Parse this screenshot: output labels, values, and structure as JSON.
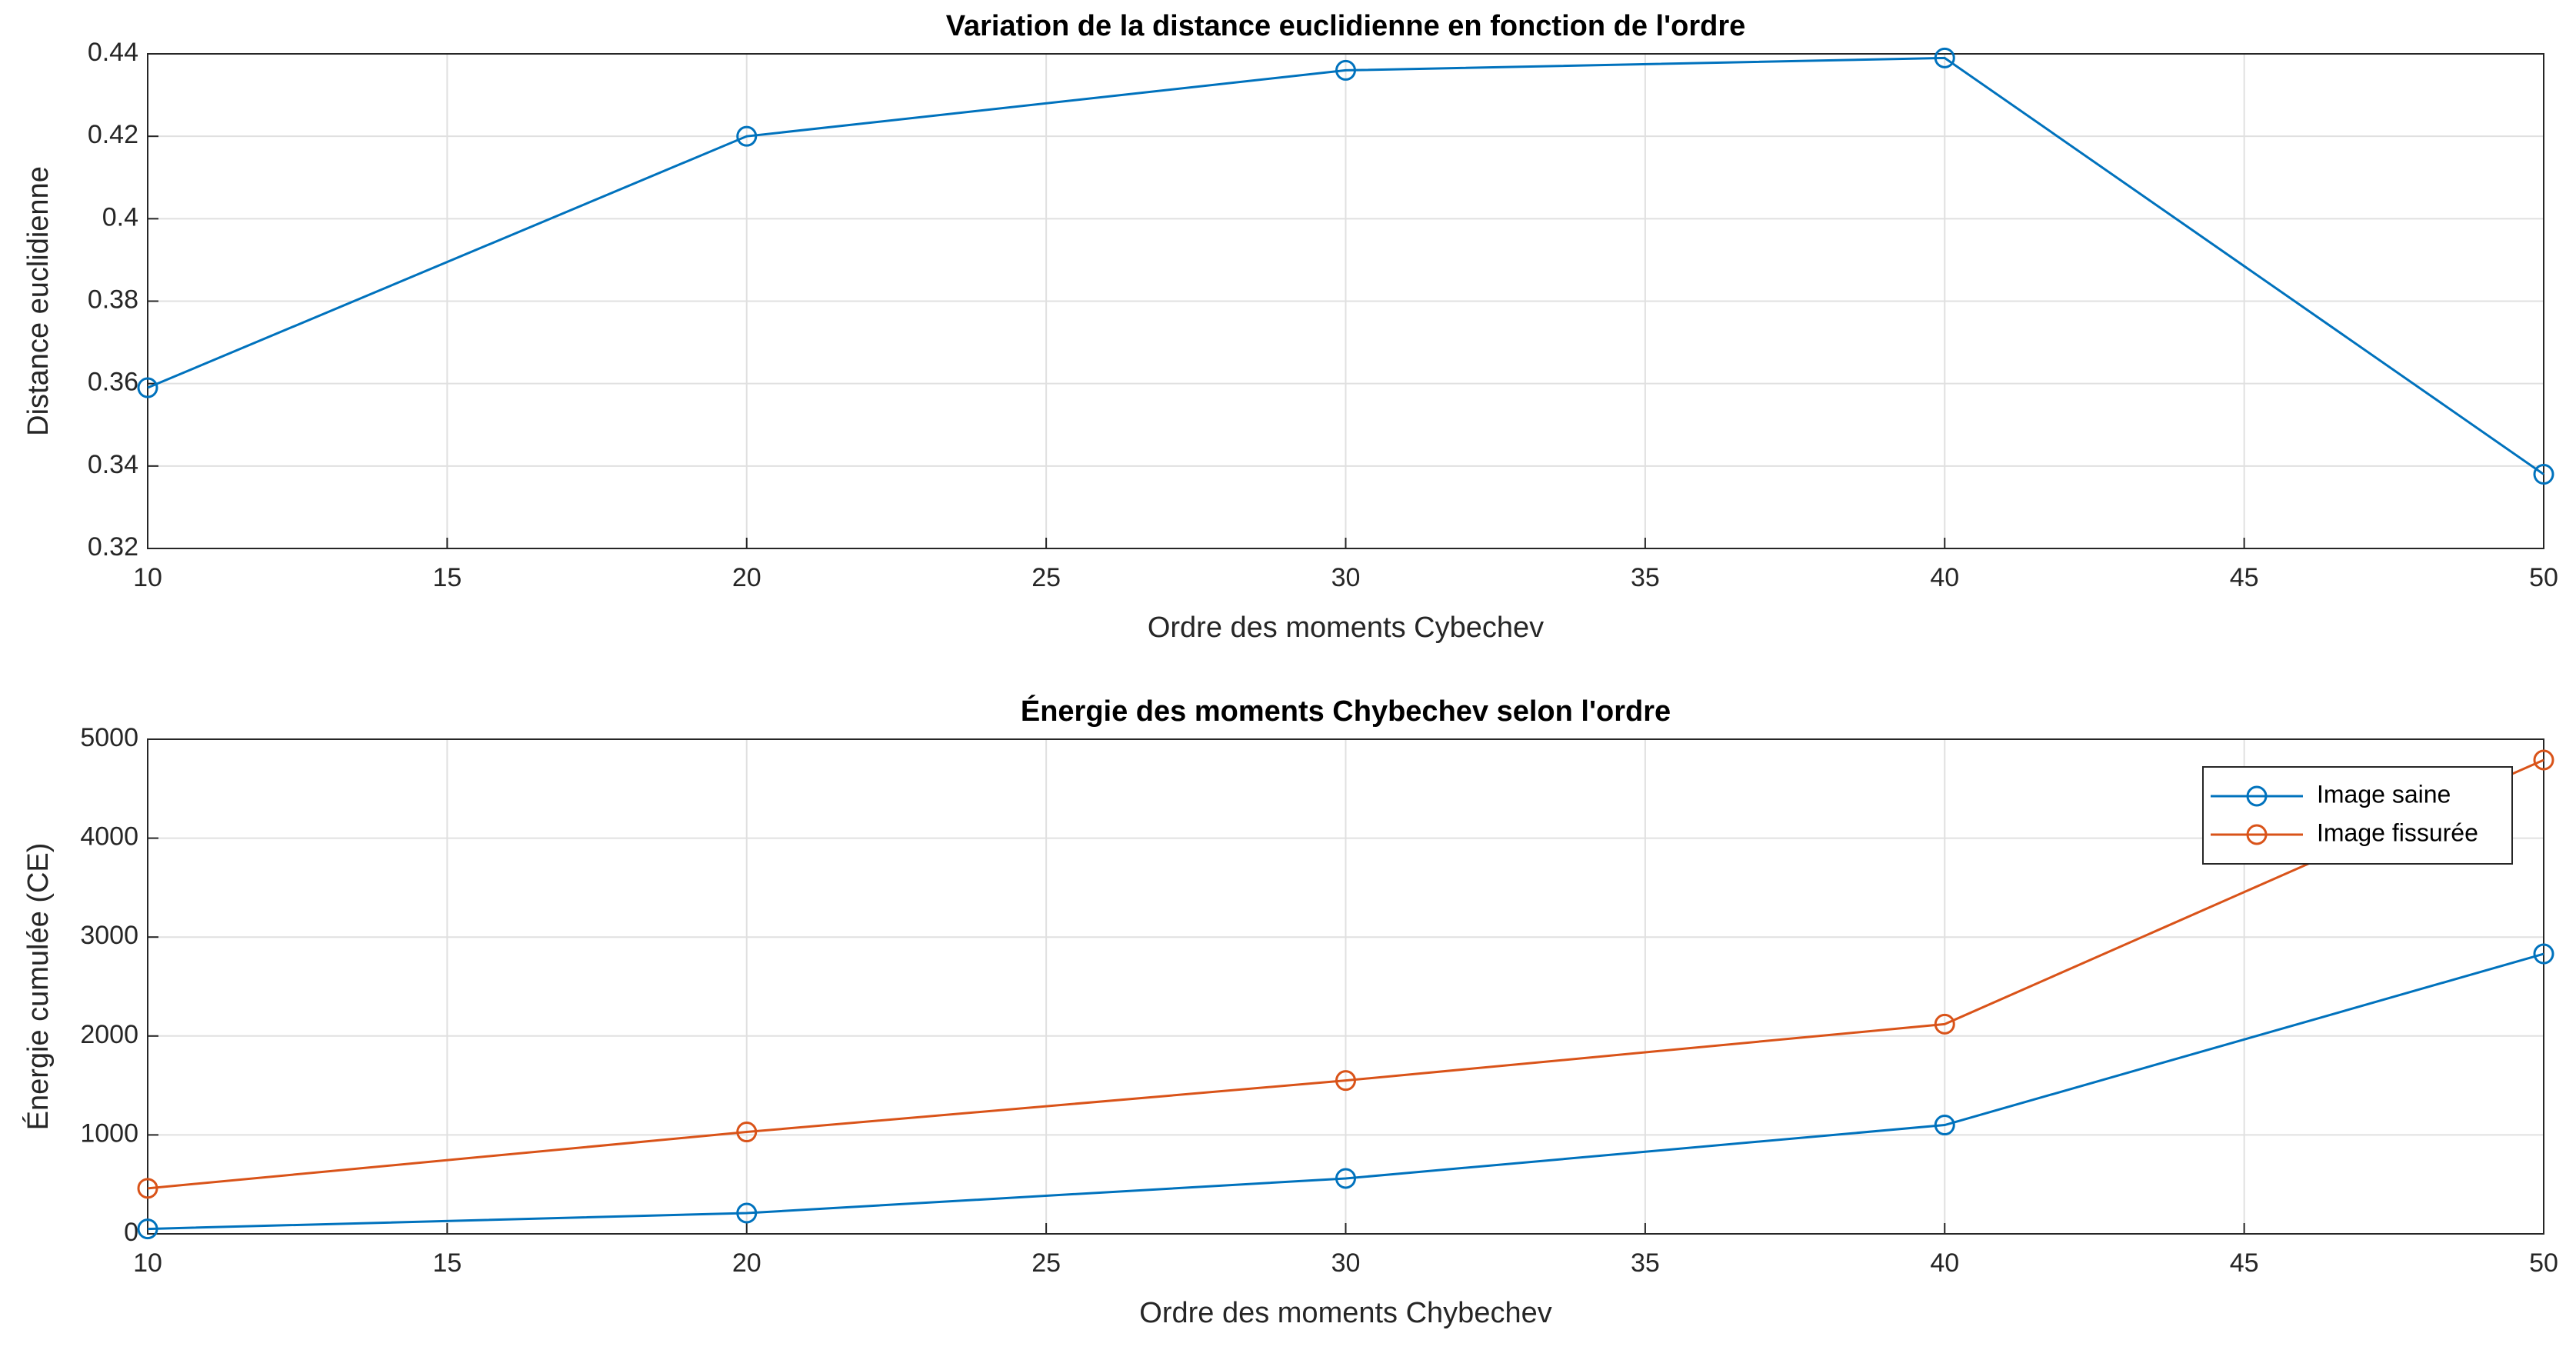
{
  "chart_data": [
    {
      "type": "line",
      "title": "Variation de la distance euclidienne en fonction de l'ordre",
      "x_label": "Ordre des moments Cybechev",
      "y_label": "Distance euclidienne",
      "x": [
        10,
        20,
        30,
        40,
        50
      ],
      "values": [
        0.359,
        0.42,
        0.436,
        0.439,
        0.338
      ],
      "color": "#0072bd",
      "xlim": [
        10,
        50
      ],
      "xticks": [
        10,
        15,
        20,
        25,
        30,
        35,
        40,
        45,
        50
      ],
      "ylim": [
        0.32,
        0.44
      ],
      "yticks": [
        0.32,
        0.34,
        0.36,
        0.38,
        0.4,
        0.42,
        0.44
      ],
      "grid": true
    },
    {
      "type": "line",
      "title": "Énergie des moments Chybechev selon l'ordre",
      "x_label": "Ordre des moments Chybechev",
      "y_label": "Énergie cumulée (CE)",
      "x": [
        10,
        20,
        30,
        40,
        50
      ],
      "series": [
        {
          "name": "Image saine",
          "color": "#0072bd",
          "values": [
            50,
            210,
            560,
            1100,
            2830
          ]
        },
        {
          "name": "Image fissurée",
          "color": "#d95319",
          "values": [
            460,
            1030,
            1550,
            2120,
            4790
          ]
        }
      ],
      "xlim": [
        10,
        50
      ],
      "xticks": [
        10,
        15,
        20,
        25,
        30,
        35,
        40,
        45,
        50
      ],
      "ylim": [
        0,
        5000
      ],
      "yticks": [
        0,
        1000,
        2000,
        3000,
        4000,
        5000
      ],
      "grid": true,
      "legend": "top-right"
    }
  ]
}
